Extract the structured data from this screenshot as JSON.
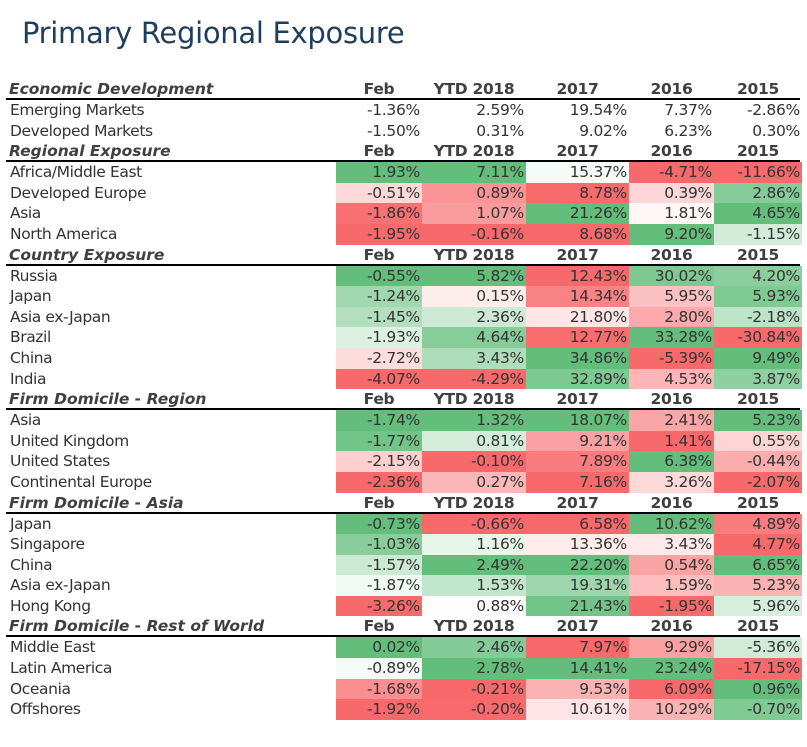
{
  "title": "Primary Regional Exposure",
  "chart_data": {
    "type": "table",
    "title": "Primary Regional Exposure",
    "columns": [
      "Feb",
      "YTD 2018",
      "2017",
      "2016",
      "2015"
    ],
    "colorscale": {
      "negative": "#f8696b",
      "neutral": "#ffffff",
      "positive": "#63be7b"
    },
    "sections": [
      {
        "name": "Economic Development",
        "colored": false,
        "rows": [
          {
            "label": "Emerging Markets",
            "values": [
              -1.36,
              2.59,
              19.54,
              7.37,
              -2.86
            ]
          },
          {
            "label": "Developed Markets",
            "values": [
              -1.5,
              0.31,
              9.02,
              6.23,
              0.3
            ]
          }
        ]
      },
      {
        "name": "Regional Exposure",
        "colored": true,
        "rows": [
          {
            "label": "Africa/Middle East",
            "values": [
              1.93,
              7.11,
              15.37,
              -4.71,
              -11.66
            ]
          },
          {
            "label": "Developed Europe",
            "values": [
              -0.51,
              0.89,
              8.78,
              0.39,
              2.86
            ]
          },
          {
            "label": "Asia",
            "values": [
              -1.86,
              1.07,
              21.26,
              1.81,
              4.65
            ]
          },
          {
            "label": "North America",
            "values": [
              -1.95,
              -0.16,
              8.68,
              9.2,
              -1.15
            ]
          }
        ]
      },
      {
        "name": "Country Exposure",
        "colored": true,
        "rows": [
          {
            "label": "Russia",
            "values": [
              -0.55,
              5.82,
              12.43,
              30.02,
              4.2
            ]
          },
          {
            "label": "Japan",
            "values": [
              -1.24,
              0.15,
              14.34,
              5.95,
              5.93
            ]
          },
          {
            "label": "Asia ex-Japan",
            "values": [
              -1.45,
              2.36,
              21.8,
              2.8,
              -2.18
            ]
          },
          {
            "label": "Brazil",
            "values": [
              -1.93,
              4.64,
              12.77,
              33.28,
              -30.84
            ]
          },
          {
            "label": "China",
            "values": [
              -2.72,
              3.43,
              34.86,
              -5.39,
              9.49
            ]
          },
          {
            "label": "India",
            "values": [
              -4.07,
              -4.29,
              32.89,
              4.53,
              3.87
            ]
          }
        ]
      },
      {
        "name": "Firm Domicile - Region",
        "colored": true,
        "rows": [
          {
            "label": "Asia",
            "values": [
              -1.74,
              1.32,
              18.07,
              2.41,
              5.23
            ]
          },
          {
            "label": "United Kingdom",
            "values": [
              -1.77,
              0.81,
              9.21,
              1.41,
              0.55
            ]
          },
          {
            "label": "United States",
            "values": [
              -2.15,
              -0.1,
              7.89,
              6.38,
              -0.44
            ]
          },
          {
            "label": "Continental Europe",
            "values": [
              -2.36,
              0.27,
              7.16,
              3.26,
              -2.07
            ]
          }
        ]
      },
      {
        "name": "Firm Domicile - Asia",
        "colored": true,
        "rows": [
          {
            "label": "Japan",
            "values": [
              -0.73,
              -0.66,
              6.58,
              10.62,
              4.89
            ]
          },
          {
            "label": "Singapore",
            "values": [
              -1.03,
              1.16,
              13.36,
              3.43,
              4.77
            ]
          },
          {
            "label": "China",
            "values": [
              -1.57,
              2.49,
              22.2,
              0.54,
              6.65
            ]
          },
          {
            "label": "Asia ex-Japan",
            "values": [
              -1.87,
              1.53,
              19.31,
              1.59,
              5.23
            ]
          },
          {
            "label": "Hong Kong",
            "values": [
              -3.26,
              0.88,
              21.43,
              -1.95,
              5.96
            ]
          }
        ]
      },
      {
        "name": "Firm Domicile - Rest of World",
        "colored": true,
        "rows": [
          {
            "label": "Middle East",
            "values": [
              0.02,
              2.46,
              7.97,
              9.29,
              -5.36
            ]
          },
          {
            "label": "Latin America",
            "values": [
              -0.89,
              2.78,
              14.41,
              23.24,
              -17.15
            ]
          },
          {
            "label": "Oceania",
            "values": [
              -1.68,
              -0.21,
              9.53,
              6.09,
              0.96
            ]
          },
          {
            "label": "Offshores",
            "values": [
              -1.92,
              -0.2,
              10.61,
              10.29,
              -0.7
            ]
          }
        ]
      }
    ]
  }
}
